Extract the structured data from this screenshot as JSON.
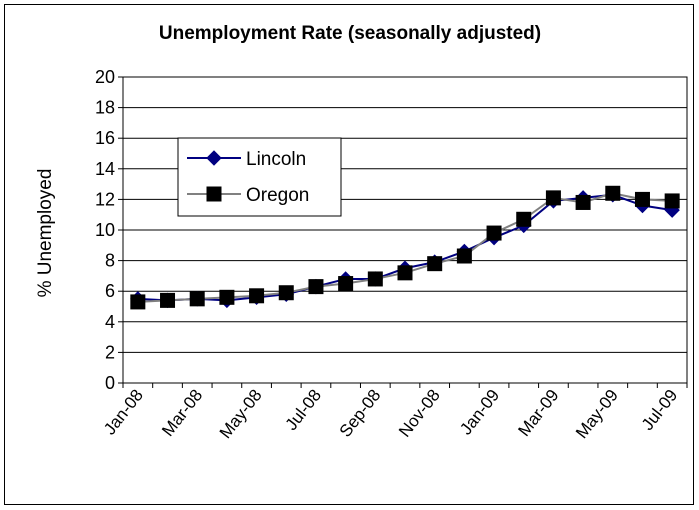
{
  "chart_data": {
    "type": "line",
    "title": "Unemployment Rate (seasonally adjusted)",
    "ylabel": "% Unemployed",
    "xlabel": "",
    "ylim": [
      0,
      20
    ],
    "yticks": [
      "0",
      "2",
      "4",
      "6",
      "8",
      "10",
      "12",
      "14",
      "16",
      "18",
      "20"
    ],
    "categories": [
      "Jan-08",
      "Feb-08",
      "Mar-08",
      "Apr-08",
      "May-08",
      "Jun-08",
      "Jul-08",
      "Aug-08",
      "Sep-08",
      "Oct-08",
      "Nov-08",
      "Dec-08",
      "Jan-09",
      "Feb-09",
      "Mar-09",
      "Apr-09",
      "May-09",
      "Jun-09",
      "Jul-09"
    ],
    "xtick_labels": [
      "Jan-08",
      "Mar-08",
      "May-08",
      "Jul-08",
      "Sep-08",
      "Nov-08",
      "Jan-09",
      "Mar-09",
      "May-09",
      "Jul-09"
    ],
    "grid": true,
    "legend_position": "upper-left",
    "series": [
      {
        "name": "Lincoln",
        "color": "#000080",
        "marker": "diamond",
        "values": [
          5.5,
          5.4,
          5.5,
          5.4,
          5.6,
          5.8,
          6.3,
          6.8,
          6.8,
          7.5,
          7.9,
          8.6,
          9.5,
          10.3,
          11.9,
          12.1,
          12.3,
          11.6,
          11.3
        ]
      },
      {
        "name": "Oregon",
        "color": "#808080",
        "marker": "square",
        "values": [
          5.3,
          5.4,
          5.5,
          5.6,
          5.7,
          5.9,
          6.3,
          6.5,
          6.8,
          7.2,
          7.8,
          8.3,
          9.8,
          10.7,
          12.1,
          11.8,
          12.4,
          12.0,
          11.9
        ]
      }
    ]
  }
}
